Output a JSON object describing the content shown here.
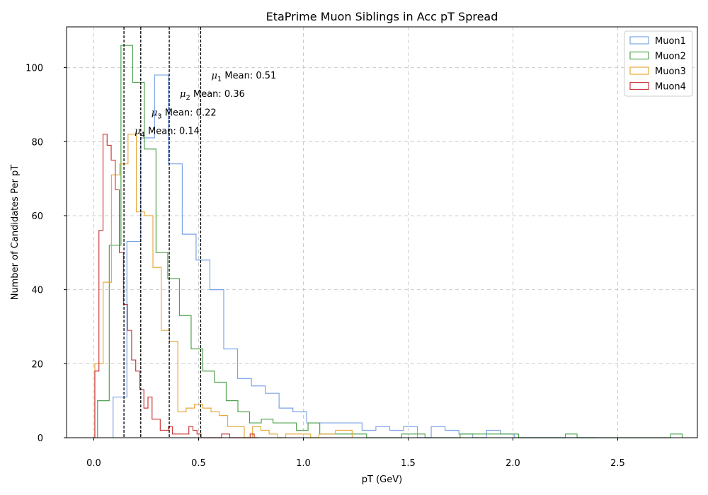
{
  "chart_data": {
    "type": "histogram",
    "title": "EtaPrime Muon Siblings in Acc pT Spread",
    "xlabel": "pT (GeV)",
    "ylabel": "Number of Candidates Per pT",
    "xlim": [
      -0.13,
      2.88
    ],
    "ylim": [
      0,
      111
    ],
    "xticks": [
      0.0,
      0.5,
      1.0,
      1.5,
      2.0,
      2.5
    ],
    "xtick_labels": [
      "0.0",
      "0.5",
      "1.0",
      "1.5",
      "2.0",
      "2.5"
    ],
    "yticks": [
      0,
      20,
      40,
      60,
      80,
      100
    ],
    "ytick_labels": [
      "0",
      "20",
      "40",
      "60",
      "80",
      "100"
    ],
    "grid": true,
    "legend_position": "top-right",
    "series": [
      {
        "name": "Muon1",
        "color": "#7ba3e8",
        "bin_width": 0.066,
        "x_start": 0.092,
        "values": [
          11,
          53,
          81,
          98,
          74,
          55,
          48,
          40,
          24,
          16,
          14,
          12,
          8,
          7,
          4,
          4,
          4,
          4,
          2,
          3,
          2,
          3,
          0,
          3,
          2,
          1,
          0,
          2,
          1,
          0,
          0,
          0,
          0,
          0,
          0
        ]
      },
      {
        "name": "Muon2",
        "color": "#4fa34f",
        "bin_width": 0.0558,
        "x_start": 0.018,
        "values": [
          10,
          52,
          106,
          96,
          78,
          50,
          43,
          33,
          24,
          18,
          15,
          10,
          7,
          4,
          5,
          4,
          4,
          2,
          4,
          1,
          1,
          1,
          1,
          0,
          0,
          0,
          1,
          1,
          0,
          0,
          0,
          1,
          1,
          1,
          1,
          1,
          0,
          0,
          0,
          0,
          1,
          0,
          0,
          0,
          0,
          0,
          0,
          0,
          0,
          1
        ]
      },
      {
        "name": "Muon3",
        "color": "#e8a93d",
        "bin_width": 0.0396,
        "x_start": 0.005,
        "values": [
          20,
          42,
          71,
          74,
          82,
          61,
          60,
          46,
          29,
          26,
          7,
          8,
          9,
          8,
          7,
          6,
          3,
          3,
          0,
          3,
          2,
          1,
          0,
          1,
          1,
          1,
          0,
          1,
          1,
          2,
          2
        ]
      },
      {
        "name": "Muon4",
        "color": "#cc3b3b",
        "bin_width": 0.0195,
        "x_start": 0.005,
        "values": [
          18,
          56,
          82,
          79,
          75,
          67,
          50,
          36,
          29,
          21,
          18,
          13,
          8,
          11,
          5,
          5,
          2,
          2,
          3,
          1,
          1,
          1,
          1,
          3,
          2,
          1,
          0,
          0,
          0,
          0,
          0,
          1,
          1,
          0,
          0,
          0,
          0,
          0,
          1,
          0
        ]
      }
    ],
    "mean_lines": [
      {
        "symbol": "μ",
        "sub": "1",
        "label": "Mean: 0.51",
        "x": 0.51,
        "text_y": 98
      },
      {
        "symbol": "μ",
        "sub": "2",
        "label": "Mean: 0.36",
        "x": 0.36,
        "text_y": 93
      },
      {
        "symbol": "μ",
        "sub": "3",
        "label": "Mean: 0.22",
        "x": 0.224,
        "text_y": 88
      },
      {
        "symbol": "μ",
        "sub": "4",
        "label": "Mean: 0.14",
        "x": 0.144,
        "text_y": 83
      }
    ]
  }
}
